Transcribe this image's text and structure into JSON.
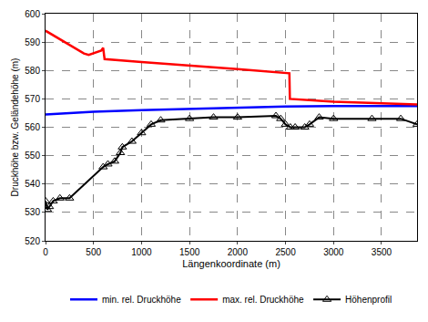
{
  "chart_data": {
    "type": "line",
    "x_label": "Längenkoordinate (m)",
    "y_label": "Druckhöhe bzw. Geländehöhe (m)",
    "xlim": [
      0,
      3870
    ],
    "xticks": [
      0,
      500,
      1000,
      1500,
      2000,
      2500,
      3000,
      3500
    ],
    "ylim": [
      520,
      600
    ],
    "yticks": [
      520,
      530,
      540,
      550,
      560,
      570,
      580,
      590,
      600
    ],
    "grid": true,
    "legend": "bottom",
    "series": [
      {
        "name": "min. rel. Druckhöhe",
        "color": "#0000ff",
        "line_style": "solid",
        "marker": "none",
        "x": [
          0,
          500,
          1000,
          1500,
          2000,
          2500,
          3000,
          3500,
          3870
        ],
        "values": [
          564.5,
          565.5,
          566,
          566.5,
          567,
          567.3,
          567.5,
          567.5,
          567.5
        ]
      },
      {
        "name": "max. rel. Druckhöhe",
        "color": "#ff0000",
        "line_style": "solid",
        "marker": "none",
        "x": [
          0,
          100,
          200,
          300,
          400,
          450,
          500,
          550,
          580,
          600,
          615,
          1000,
          1500,
          2000,
          2540,
          2545,
          3000,
          3500,
          3870
        ],
        "values": [
          594,
          592,
          590,
          588,
          586,
          585.5,
          586,
          586.5,
          587,
          588,
          584,
          583,
          581.8,
          580.5,
          579,
          570,
          569,
          568.3,
          568
        ]
      },
      {
        "name": "Höhenprofil",
        "color": "#000000",
        "line_style": "solid",
        "marker": "triangle-up",
        "x": [
          0,
          20,
          40,
          80,
          150,
          250,
          600,
          650,
          720,
          780,
          800,
          900,
          1000,
          1100,
          1200,
          1500,
          1750,
          2000,
          2400,
          2450,
          2500,
          2550,
          2600,
          2700,
          2750,
          2850,
          3000,
          3400,
          3700,
          3870
        ],
        "values": [
          534,
          531,
          532,
          534,
          535,
          535,
          546,
          547,
          548,
          551,
          553,
          555,
          558,
          561,
          562.5,
          563,
          563.5,
          563.5,
          564,
          563,
          561,
          560,
          560,
          560,
          561,
          563.5,
          563,
          563,
          563,
          561
        ]
      }
    ]
  }
}
